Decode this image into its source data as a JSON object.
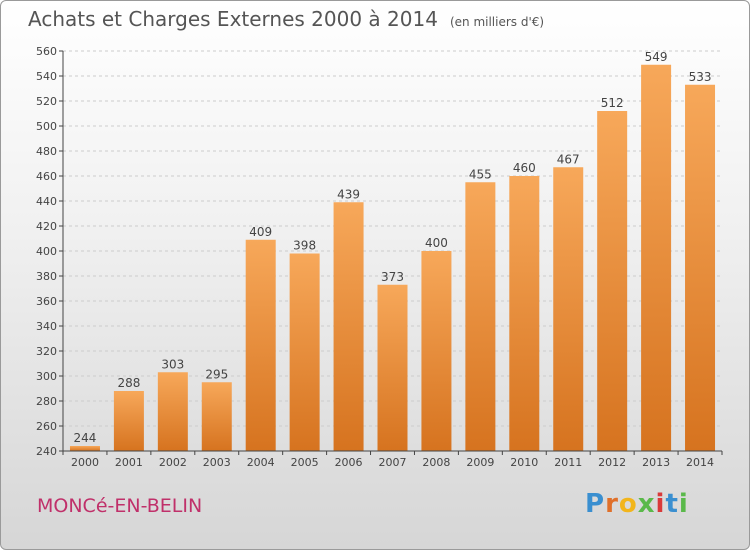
{
  "title": "Achats et Charges Externes 2000 à 2014",
  "unit": "(en milliers d'€)",
  "place": "MONCé-EN-BELIN",
  "brand": {
    "letters": [
      "P",
      "r",
      "o",
      "x",
      "i",
      "t",
      "i"
    ],
    "colors": [
      "#3a8fd0",
      "#e0702a",
      "#f2b51c",
      "#5ab94a",
      "#d93a3a",
      "#3a8fd0",
      "#5ab94a"
    ]
  },
  "colors": {
    "bar_light": "#f7a85a",
    "bar_dark": "#d6731f",
    "grid": "#cccccc",
    "axis": "#444444",
    "text": "#444444"
  },
  "chart_data": {
    "type": "bar",
    "categories": [
      "2000",
      "2001",
      "2002",
      "2003",
      "2004",
      "2005",
      "2006",
      "2007",
      "2008",
      "2009",
      "2010",
      "2011",
      "2012",
      "2013",
      "2014"
    ],
    "values": [
      244,
      288,
      303,
      295,
      409,
      398,
      439,
      373,
      400,
      455,
      460,
      467,
      512,
      549,
      533
    ],
    "ylim": [
      240,
      560
    ],
    "yticks": [
      240,
      260,
      280,
      300,
      320,
      340,
      360,
      380,
      400,
      420,
      440,
      460,
      480,
      500,
      520,
      540,
      560
    ],
    "grid": true
  }
}
